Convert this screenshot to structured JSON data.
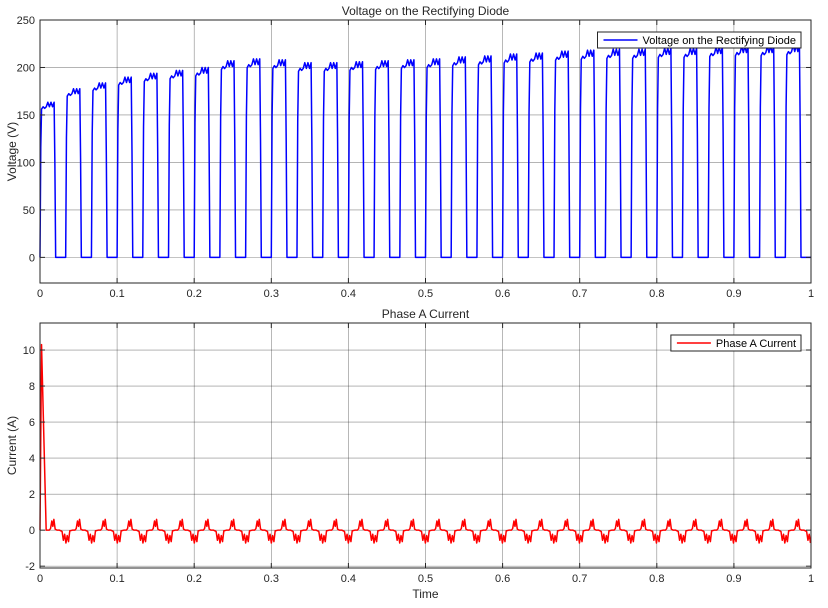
{
  "colors": {
    "voltage": "#0000ff",
    "current": "#ff0000",
    "grid": "#262626"
  },
  "chart_data": [
    {
      "type": "line",
      "title": "Voltage on the Rectifying Diode",
      "xlabel": "",
      "ylabel": "Voltage (V)",
      "xlim": [
        0,
        1
      ],
      "ylim": [
        -27,
        250
      ],
      "xticks": [
        0,
        0.1,
        0.2,
        0.3,
        0.4,
        0.5,
        0.6,
        0.7,
        0.8,
        0.9,
        1
      ],
      "xtick_labels": [
        "0",
        "0.1",
        "0.2",
        "0.3",
        "0.4",
        "0.5",
        "0.6",
        "0.7",
        "0.8",
        "0.9",
        "1"
      ],
      "yticks": [
        0,
        50,
        100,
        150,
        200,
        250
      ],
      "ytick_labels": [
        "0",
        "50",
        "100",
        "150",
        "200",
        "250"
      ],
      "grid": true,
      "legend": {
        "placement": "top-right",
        "entries": [
          "Voltage on the Rectifying Diode"
        ]
      },
      "series": [
        {
          "name": "Voltage on the Rectifying Diode",
          "waveform": "rectangular pulses, period 0.0333 s, about 55% high, peak rising from about 161 V to about 220 V",
          "x": [
            0,
            0.0333,
            0.0667,
            0.1,
            0.1333,
            0.1667,
            0.2,
            0.2333,
            0.2667,
            0.3,
            0.3333,
            0.3667,
            0.4,
            0.4333,
            0.4667,
            0.5,
            0.5333,
            0.5667,
            0.6,
            0.6333,
            0.6667,
            0.7,
            0.7333,
            0.7667,
            0.8,
            0.8333,
            0.8667,
            0.9,
            0.9333,
            0.9667
          ],
          "peaks": [
            161,
            175,
            181,
            187,
            191,
            194,
            197,
            204,
            206,
            205,
            202,
            202,
            203,
            204,
            205,
            206,
            208,
            209,
            211,
            212,
            214,
            215,
            216,
            216,
            217,
            217,
            218,
            219,
            219,
            220
          ],
          "low": 0
        }
      ]
    },
    {
      "type": "line",
      "title": "Phase A Current",
      "xlabel": "Time",
      "ylabel": "Current (A)",
      "xlim": [
        0,
        1
      ],
      "ylim": [
        -2.1,
        11.5
      ],
      "xticks": [
        0,
        0.1,
        0.2,
        0.3,
        0.4,
        0.5,
        0.6,
        0.7,
        0.8,
        0.9,
        1
      ],
      "xtick_labels": [
        "0",
        "0.1",
        "0.2",
        "0.3",
        "0.4",
        "0.5",
        "0.6",
        "0.7",
        "0.8",
        "0.9",
        "1"
      ],
      "yticks": [
        -2,
        0,
        2,
        4,
        6,
        8,
        10
      ],
      "ytick_labels": [
        "-2",
        "0",
        "2",
        "4",
        "6",
        "8",
        "10"
      ],
      "grid": true,
      "legend": {
        "placement": "top-right",
        "entries": [
          "Phase A Current"
        ]
      },
      "series": [
        {
          "name": "Phase A Current",
          "waveform": "inrush spike to about 10.3 A at t≈0.002 s decaying to 0 by t≈0.008 s, then periodic ripple of about ±0.6 A with period 0.0333 s",
          "inrush": {
            "x": [
              0,
              0.002,
              0.008
            ],
            "y": [
              0,
              10.3,
              0
            ]
          },
          "ripple_period": 0.0333,
          "ripple_pos_peak": 0.6,
          "ripple_neg_peak": -0.75
        }
      ]
    }
  ]
}
